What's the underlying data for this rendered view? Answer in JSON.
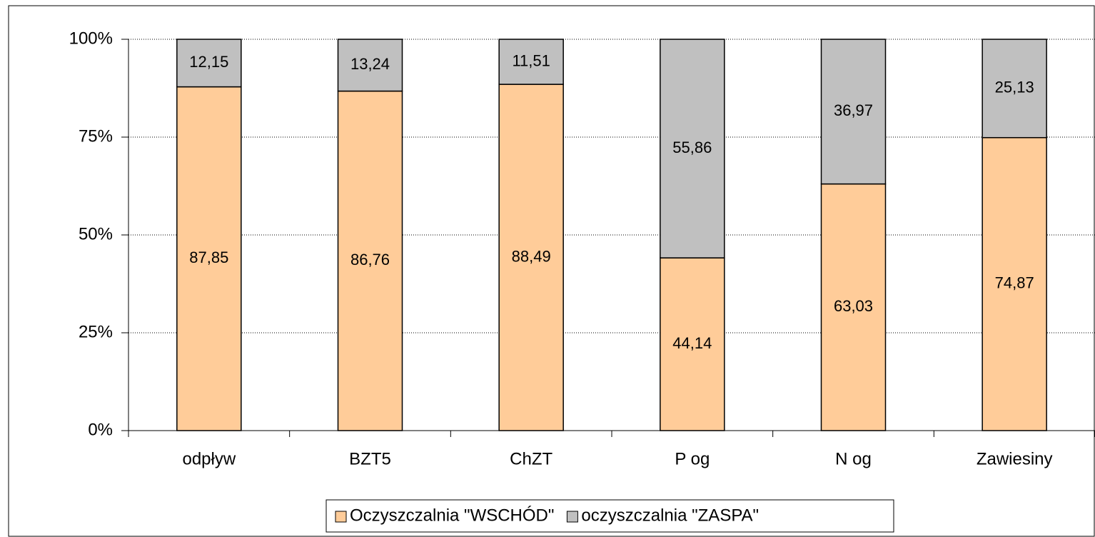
{
  "chart_data": {
    "type": "bar",
    "stacked": true,
    "categories": [
      "odpływ",
      "BZT5",
      "ChZT",
      "P og",
      "N og",
      "Zawiesiny"
    ],
    "series": [
      {
        "name": "Oczyszczalnia \"WSCHÓD\"",
        "color": "#FFCC99",
        "values": [
          87.85,
          86.76,
          88.49,
          44.14,
          63.03,
          74.87
        ],
        "value_labels": [
          "87,85",
          "86,76",
          "88,49",
          "44,14",
          "63,03",
          "74,87"
        ]
      },
      {
        "name": "oczyszczalnia \"ZASPA\"",
        "color": "#C0C0C0",
        "values": [
          12.15,
          13.24,
          11.51,
          55.86,
          36.97,
          25.13
        ],
        "value_labels": [
          "12,15",
          "13,24",
          "11,51",
          "55,86",
          "36,97",
          "25,13"
        ]
      }
    ],
    "ylim": [
      0,
      100
    ],
    "yticks": [
      {
        "value": 0,
        "label": "0%"
      },
      {
        "value": 25,
        "label": "25%"
      },
      {
        "value": 50,
        "label": "50%"
      },
      {
        "value": 75,
        "label": "75%"
      },
      {
        "value": 100,
        "label": "100%"
      }
    ],
    "grid": true,
    "legend": "bottom"
  }
}
